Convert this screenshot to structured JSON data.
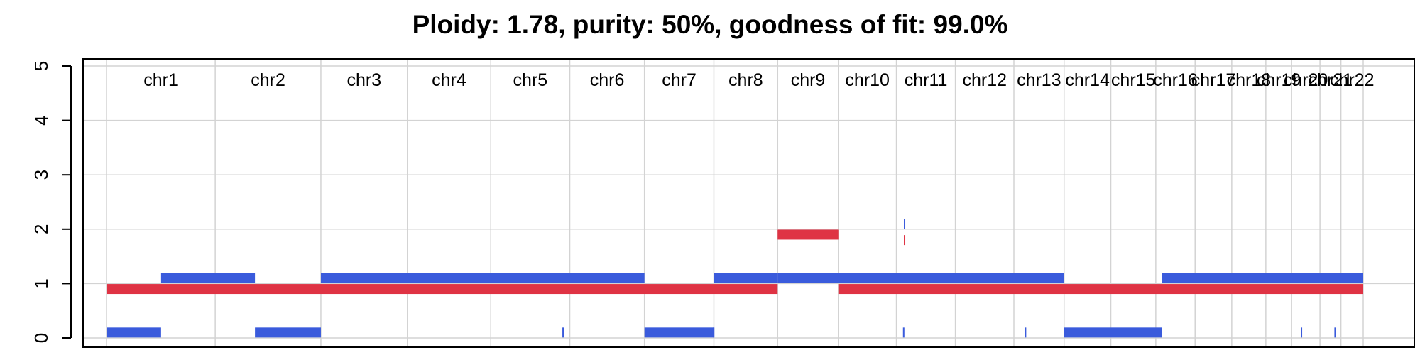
{
  "chart_data": {
    "type": "segments",
    "title": "Ploidy: 1.78, purity: 50%, goodness of fit: 99.0%",
    "xlabel": "",
    "ylabel": "",
    "ylim": [
      0,
      5
    ],
    "y_ticks": [
      "0",
      "1",
      "2",
      "3",
      "4",
      "5"
    ],
    "grid": true,
    "chromosomes": [
      "chr1",
      "chr2",
      "chr3",
      "chr4",
      "chr5",
      "chr6",
      "chr7",
      "chr8",
      "chr9",
      "chr10",
      "chr11",
      "chr12",
      "chr13",
      "chr14",
      "chr15",
      "chr16",
      "chr17",
      "chr18",
      "chr19",
      "chr20",
      "chr21",
      "chr22"
    ],
    "chromosome_boundaries": [
      0,
      249,
      491,
      689,
      880,
      1061,
      1232,
      1391,
      1537,
      1676,
      1809,
      1944,
      2078,
      2193,
      2300,
      2403,
      2493,
      2577,
      2655,
      2714,
      2779,
      2827,
      2878
    ],
    "series": [
      {
        "color": "#df3344",
        "segments": [
          {
            "x0": 0,
            "x1": 1537,
            "y": 0.9
          },
          {
            "x0": 1537,
            "x1": 1676,
            "y": 1.9
          },
          {
            "x0": 1676,
            "x1": 2878,
            "y": 0.9
          },
          {
            "x0": 1826,
            "x1": 1828,
            "y": 1.8,
            "marker": true
          }
        ]
      },
      {
        "color": "#3a5bdc",
        "segments": [
          {
            "x0": 0,
            "x1": 125,
            "y": 0.1
          },
          {
            "x0": 125,
            "x1": 340,
            "y": 1.1
          },
          {
            "x0": 340,
            "x1": 491,
            "y": 0.1
          },
          {
            "x0": 491,
            "x1": 1232,
            "y": 1.1
          },
          {
            "x0": 1232,
            "x1": 1391,
            "y": 0.1
          },
          {
            "x0": 1391,
            "x1": 1537,
            "y": 1.1
          },
          {
            "x0": 1537,
            "x1": 2193,
            "y": 1.1
          },
          {
            "x0": 2193,
            "x1": 2417,
            "y": 0.1
          },
          {
            "x0": 2417,
            "x1": 2878,
            "y": 1.1
          },
          {
            "x0": 1044,
            "x1": 1046,
            "y": 0.1,
            "marker": true
          },
          {
            "x0": 1389,
            "x1": 1391,
            "y": 0.1,
            "marker": true
          },
          {
            "x0": 1824,
            "x1": 1826,
            "y": 0.1,
            "marker": true
          },
          {
            "x0": 2103,
            "x1": 2105,
            "y": 0.1,
            "marker": true
          },
          {
            "x0": 2735,
            "x1": 2737,
            "y": 0.1,
            "marker": true
          },
          {
            "x0": 2812,
            "x1": 2814,
            "y": 0.1,
            "marker": true
          },
          {
            "x0": 1826,
            "x1": 1828,
            "y": 2.1,
            "marker": true
          }
        ]
      }
    ]
  }
}
